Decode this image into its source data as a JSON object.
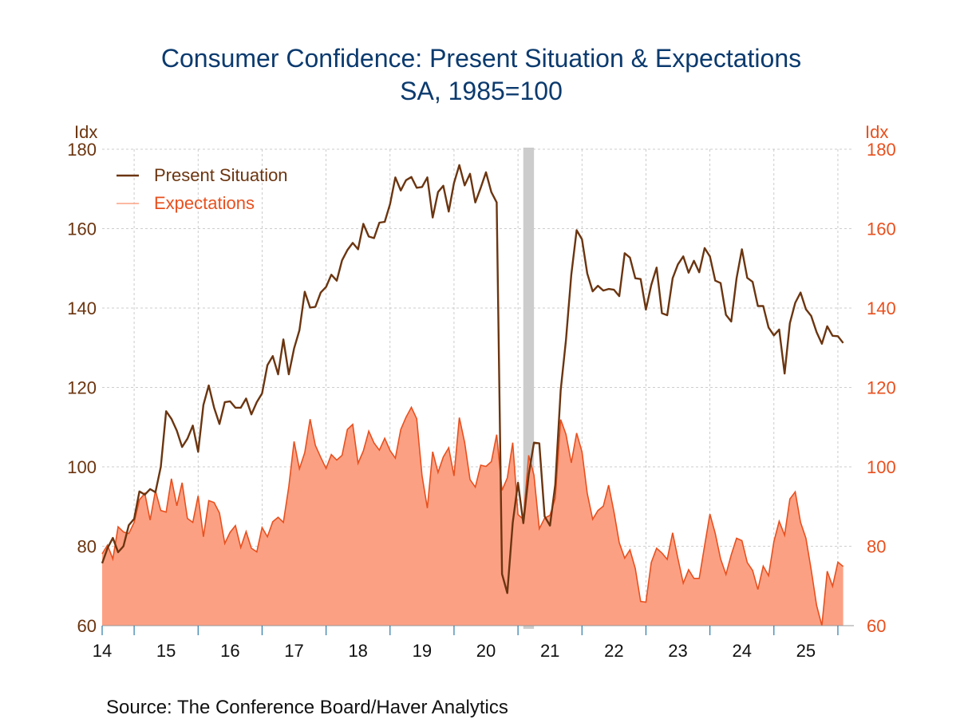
{
  "chart_data": {
    "type": "line",
    "title": "Consumer Confidence: Present Situation & Expectations",
    "subtitle": "SA, 1985=100",
    "left_unit": "Idx",
    "right_unit": "Idx",
    "source": "Source:  The Conference Board/Haver Analytics",
    "ylim": [
      60,
      180
    ],
    "yticks": [
      60,
      80,
      100,
      120,
      140,
      160,
      180
    ],
    "xlim": [
      2013.5,
      2025.25
    ],
    "x_tick_labels": [
      "14",
      "15",
      "16",
      "17",
      "18",
      "19",
      "20",
      "21",
      "22",
      "23",
      "24",
      "25"
    ],
    "grid": true,
    "legend_position": "top-left",
    "recession": {
      "start": 2020.083,
      "end": 2020.25
    },
    "colors": {
      "present": "#6b3510",
      "expectations_line": "#e8501e",
      "expectations_fill": "#fca083",
      "recession": "#cccccc",
      "grid": "#bfbfbf",
      "axis": "#2a7aa8",
      "left_ticks": "#6b3510",
      "right_ticks": "#e8501e"
    },
    "series": [
      {
        "name": "Present Situation",
        "style": "line",
        "values": [
          [
            2013.5,
            75.7
          ],
          [
            2013.583,
            79.5
          ],
          [
            2013.667,
            82.1
          ],
          [
            2013.75,
            78.5
          ],
          [
            2013.833,
            80.0
          ],
          [
            2013.917,
            85.3
          ],
          [
            2014.0,
            86.9
          ],
          [
            2014.083,
            93.8
          ],
          [
            2014.167,
            93.0
          ],
          [
            2014.25,
            94.4
          ],
          [
            2014.333,
            93.6
          ],
          [
            2014.417,
            100.0
          ],
          [
            2014.5,
            114.0
          ],
          [
            2014.583,
            112.1
          ],
          [
            2014.667,
            109.1
          ],
          [
            2014.75,
            105.0
          ],
          [
            2014.833,
            107.1
          ],
          [
            2014.917,
            110.4
          ],
          [
            2015.0,
            103.8
          ],
          [
            2015.083,
            115.6
          ],
          [
            2015.167,
            120.5
          ],
          [
            2015.25,
            114.9
          ],
          [
            2015.333,
            110.8
          ],
          [
            2015.417,
            116.3
          ],
          [
            2015.5,
            116.5
          ],
          [
            2015.583,
            114.9
          ],
          [
            2015.667,
            114.9
          ],
          [
            2015.75,
            117.2
          ],
          [
            2015.833,
            113.2
          ],
          [
            2015.917,
            116.3
          ],
          [
            2016.0,
            118.5
          ],
          [
            2016.083,
            125.6
          ],
          [
            2016.167,
            127.9
          ],
          [
            2016.25,
            123.3
          ],
          [
            2016.333,
            132.1
          ],
          [
            2016.417,
            123.3
          ],
          [
            2016.5,
            129.8
          ],
          [
            2016.583,
            134.4
          ],
          [
            2016.667,
            144.1
          ],
          [
            2016.75,
            140.1
          ],
          [
            2016.833,
            140.3
          ],
          [
            2016.917,
            143.9
          ],
          [
            2017.0,
            145.3
          ],
          [
            2017.083,
            148.4
          ],
          [
            2017.167,
            146.9
          ],
          [
            2017.25,
            152.0
          ],
          [
            2017.333,
            154.6
          ],
          [
            2017.417,
            156.4
          ],
          [
            2017.5,
            154.8
          ],
          [
            2017.583,
            161.2
          ],
          [
            2017.667,
            158.0
          ],
          [
            2017.75,
            157.6
          ],
          [
            2017.833,
            161.5
          ],
          [
            2017.917,
            161.7
          ],
          [
            2018.0,
            166.2
          ],
          [
            2018.083,
            172.9
          ],
          [
            2018.167,
            169.6
          ],
          [
            2018.25,
            172.2
          ],
          [
            2018.333,
            173.0
          ],
          [
            2018.417,
            170.3
          ],
          [
            2018.5,
            170.5
          ],
          [
            2018.583,
            172.9
          ],
          [
            2018.667,
            162.8
          ],
          [
            2018.75,
            169.2
          ],
          [
            2018.833,
            170.8
          ],
          [
            2018.917,
            164.3
          ],
          [
            2019.0,
            171.5
          ],
          [
            2019.083,
            176.0
          ],
          [
            2019.167,
            170.9
          ],
          [
            2019.25,
            173.8
          ],
          [
            2019.333,
            166.6
          ],
          [
            2019.417,
            170.3
          ],
          [
            2019.5,
            174.2
          ],
          [
            2019.583,
            169.2
          ],
          [
            2019.667,
            166.6
          ],
          [
            2019.75,
            73.0
          ],
          [
            2019.833,
            68.2
          ],
          [
            2019.917,
            85.9
          ],
          [
            2020.0,
            96.0
          ],
          [
            2020.083,
            85.8
          ],
          [
            2020.167,
            98.0
          ],
          [
            2020.25,
            106.1
          ],
          [
            2020.333,
            105.9
          ],
          [
            2020.417,
            87.5
          ],
          [
            2020.5,
            85.2
          ],
          [
            2020.583,
            95.5
          ],
          [
            2020.667,
            119.3
          ],
          [
            2020.75,
            131.9
          ],
          [
            2020.833,
            148.4
          ],
          [
            2020.917,
            159.6
          ],
          [
            2021.0,
            157.3
          ],
          [
            2021.083,
            148.7
          ],
          [
            2021.167,
            144.2
          ],
          [
            2021.25,
            145.6
          ],
          [
            2021.333,
            144.4
          ],
          [
            2021.417,
            144.8
          ],
          [
            2021.5,
            144.6
          ],
          [
            2021.583,
            143.0
          ],
          [
            2021.667,
            153.8
          ],
          [
            2021.75,
            152.7
          ],
          [
            2021.833,
            147.5
          ],
          [
            2021.917,
            147.3
          ],
          [
            2022.0,
            139.6
          ],
          [
            2022.083,
            145.8
          ],
          [
            2022.167,
            150.2
          ],
          [
            2022.25,
            138.7
          ],
          [
            2022.333,
            138.2
          ],
          [
            2022.417,
            147.5
          ],
          [
            2022.5,
            151.0
          ],
          [
            2022.583,
            153.0
          ],
          [
            2022.667,
            148.9
          ],
          [
            2022.75,
            151.9
          ],
          [
            2022.833,
            149.0
          ],
          [
            2022.917,
            155.1
          ],
          [
            2023.0,
            153.0
          ],
          [
            2023.083,
            146.9
          ],
          [
            2023.167,
            146.3
          ],
          [
            2023.25,
            138.3
          ],
          [
            2023.333,
            136.6
          ],
          [
            2023.417,
            147.5
          ],
          [
            2023.5,
            154.8
          ],
          [
            2023.583,
            147.6
          ],
          [
            2023.667,
            146.6
          ],
          [
            2023.75,
            140.5
          ],
          [
            2023.833,
            140.5
          ],
          [
            2023.917,
            135.1
          ],
          [
            2024.0,
            133.1
          ],
          [
            2024.083,
            134.6
          ],
          [
            2024.167,
            123.5
          ],
          [
            2024.25,
            136.2
          ],
          [
            2024.333,
            141.3
          ],
          [
            2024.417,
            143.9
          ],
          [
            2024.5,
            139.7
          ],
          [
            2024.583,
            138.0
          ],
          [
            2024.667,
            133.9
          ],
          [
            2024.75,
            131.0
          ],
          [
            2024.833,
            135.4
          ],
          [
            2024.917,
            133.0
          ],
          [
            2025.0,
            132.9
          ],
          [
            2025.083,
            131.2
          ]
        ]
      },
      {
        "name": "Expectations",
        "style": "area",
        "values": [
          [
            2013.5,
            78.1
          ],
          [
            2013.583,
            80.3
          ],
          [
            2013.667,
            76.8
          ],
          [
            2013.75,
            84.9
          ],
          [
            2013.833,
            83.6
          ],
          [
            2013.917,
            83.2
          ],
          [
            2014.0,
            86.0
          ],
          [
            2014.083,
            91.7
          ],
          [
            2014.167,
            93.3
          ],
          [
            2014.25,
            86.6
          ],
          [
            2014.333,
            94.0
          ],
          [
            2014.417,
            89.0
          ],
          [
            2014.5,
            88.6
          ],
          [
            2014.583,
            97.0
          ],
          [
            2014.667,
            90.2
          ],
          [
            2014.75,
            96.0
          ],
          [
            2014.833,
            87.0
          ],
          [
            2014.917,
            86.0
          ],
          [
            2015.0,
            92.7
          ],
          [
            2015.083,
            82.4
          ],
          [
            2015.167,
            91.5
          ],
          [
            2015.25,
            91.0
          ],
          [
            2015.333,
            88.4
          ],
          [
            2015.417,
            80.7
          ],
          [
            2015.5,
            83.5
          ],
          [
            2015.583,
            85.2
          ],
          [
            2015.667,
            79.7
          ],
          [
            2015.75,
            83.7
          ],
          [
            2015.833,
            79.5
          ],
          [
            2015.917,
            78.6
          ],
          [
            2016.0,
            84.7
          ],
          [
            2016.083,
            82.4
          ],
          [
            2016.167,
            86.2
          ],
          [
            2016.25,
            87.3
          ],
          [
            2016.333,
            86.0
          ],
          [
            2016.417,
            95.0
          ],
          [
            2016.5,
            106.4
          ],
          [
            2016.583,
            99.5
          ],
          [
            2016.667,
            103.6
          ],
          [
            2016.75,
            112.0
          ],
          [
            2016.833,
            105.4
          ],
          [
            2016.917,
            102.4
          ],
          [
            2017.0,
            99.6
          ],
          [
            2017.083,
            103.1
          ],
          [
            2017.167,
            101.7
          ],
          [
            2017.25,
            102.9
          ],
          [
            2017.333,
            109.4
          ],
          [
            2017.417,
            110.7
          ],
          [
            2017.5,
            100.9
          ],
          [
            2017.583,
            104.0
          ],
          [
            2017.667,
            109.0
          ],
          [
            2017.75,
            106.0
          ],
          [
            2017.833,
            104.2
          ],
          [
            2017.917,
            107.2
          ],
          [
            2018.0,
            104.1
          ],
          [
            2018.083,
            102.2
          ],
          [
            2018.167,
            109.4
          ],
          [
            2018.25,
            112.5
          ],
          [
            2018.333,
            115.0
          ],
          [
            2018.417,
            112.1
          ],
          [
            2018.5,
            97.7
          ],
          [
            2018.583,
            89.6
          ],
          [
            2018.667,
            103.8
          ],
          [
            2018.75,
            98.6
          ],
          [
            2018.833,
            102.5
          ],
          [
            2018.917,
            104.8
          ],
          [
            2019.0,
            97.7
          ],
          [
            2019.083,
            112.4
          ],
          [
            2019.167,
            106.1
          ],
          [
            2019.25,
            96.8
          ],
          [
            2019.333,
            94.9
          ],
          [
            2019.417,
            100.4
          ],
          [
            2019.5,
            100.1
          ],
          [
            2019.583,
            101.3
          ],
          [
            2019.667,
            108.1
          ],
          [
            2019.75,
            94.1
          ],
          [
            2019.833,
            97.2
          ],
          [
            2019.917,
            106.1
          ],
          [
            2020.0,
            88.0
          ],
          [
            2020.083,
            86.8
          ],
          [
            2020.167,
            102.9
          ],
          [
            2020.25,
            97.9
          ],
          [
            2020.333,
            84.4
          ],
          [
            2020.417,
            87.1
          ],
          [
            2020.5,
            87.8
          ],
          [
            2020.583,
            92.1
          ],
          [
            2020.667,
            111.9
          ],
          [
            2020.75,
            108.2
          ],
          [
            2020.833,
            101.0
          ],
          [
            2020.917,
            108.5
          ],
          [
            2021.0,
            103.8
          ],
          [
            2021.083,
            93.3
          ],
          [
            2021.167,
            86.8
          ],
          [
            2021.25,
            89.0
          ],
          [
            2021.333,
            90.1
          ],
          [
            2021.417,
            95.4
          ],
          [
            2021.5,
            88.6
          ],
          [
            2021.583,
            80.9
          ],
          [
            2021.667,
            77.0
          ],
          [
            2021.75,
            79.1
          ],
          [
            2021.833,
            74.4
          ],
          [
            2021.917,
            66.1
          ],
          [
            2022.0,
            65.9
          ],
          [
            2022.083,
            75.9
          ],
          [
            2022.167,
            79.5
          ],
          [
            2022.25,
            78.3
          ],
          [
            2022.333,
            76.7
          ],
          [
            2022.417,
            83.4
          ],
          [
            2022.5,
            76.9
          ],
          [
            2022.583,
            70.7
          ],
          [
            2022.667,
            74.1
          ],
          [
            2022.75,
            71.9
          ],
          [
            2022.833,
            71.9
          ],
          [
            2022.917,
            80.2
          ],
          [
            2023.0,
            88.1
          ],
          [
            2023.083,
            83.2
          ],
          [
            2023.167,
            76.8
          ],
          [
            2023.25,
            72.9
          ],
          [
            2023.333,
            77.8
          ],
          [
            2023.417,
            82.0
          ],
          [
            2023.5,
            81.4
          ],
          [
            2023.583,
            75.9
          ],
          [
            2023.667,
            73.9
          ],
          [
            2023.75,
            69.1
          ],
          [
            2023.833,
            75.0
          ],
          [
            2023.917,
            72.6
          ],
          [
            2024.0,
            81.2
          ],
          [
            2024.083,
            86.3
          ],
          [
            2024.167,
            82.8
          ],
          [
            2024.25,
            91.9
          ],
          [
            2024.333,
            93.7
          ],
          [
            2024.417,
            86.0
          ],
          [
            2024.5,
            82.0
          ],
          [
            2024.583,
            74.1
          ],
          [
            2024.667,
            65.1
          ],
          [
            2024.75,
            59.8
          ],
          [
            2024.833,
            73.7
          ],
          [
            2024.917,
            69.9
          ],
          [
            2025.0,
            76.0
          ],
          [
            2025.083,
            74.9
          ]
        ]
      }
    ]
  }
}
